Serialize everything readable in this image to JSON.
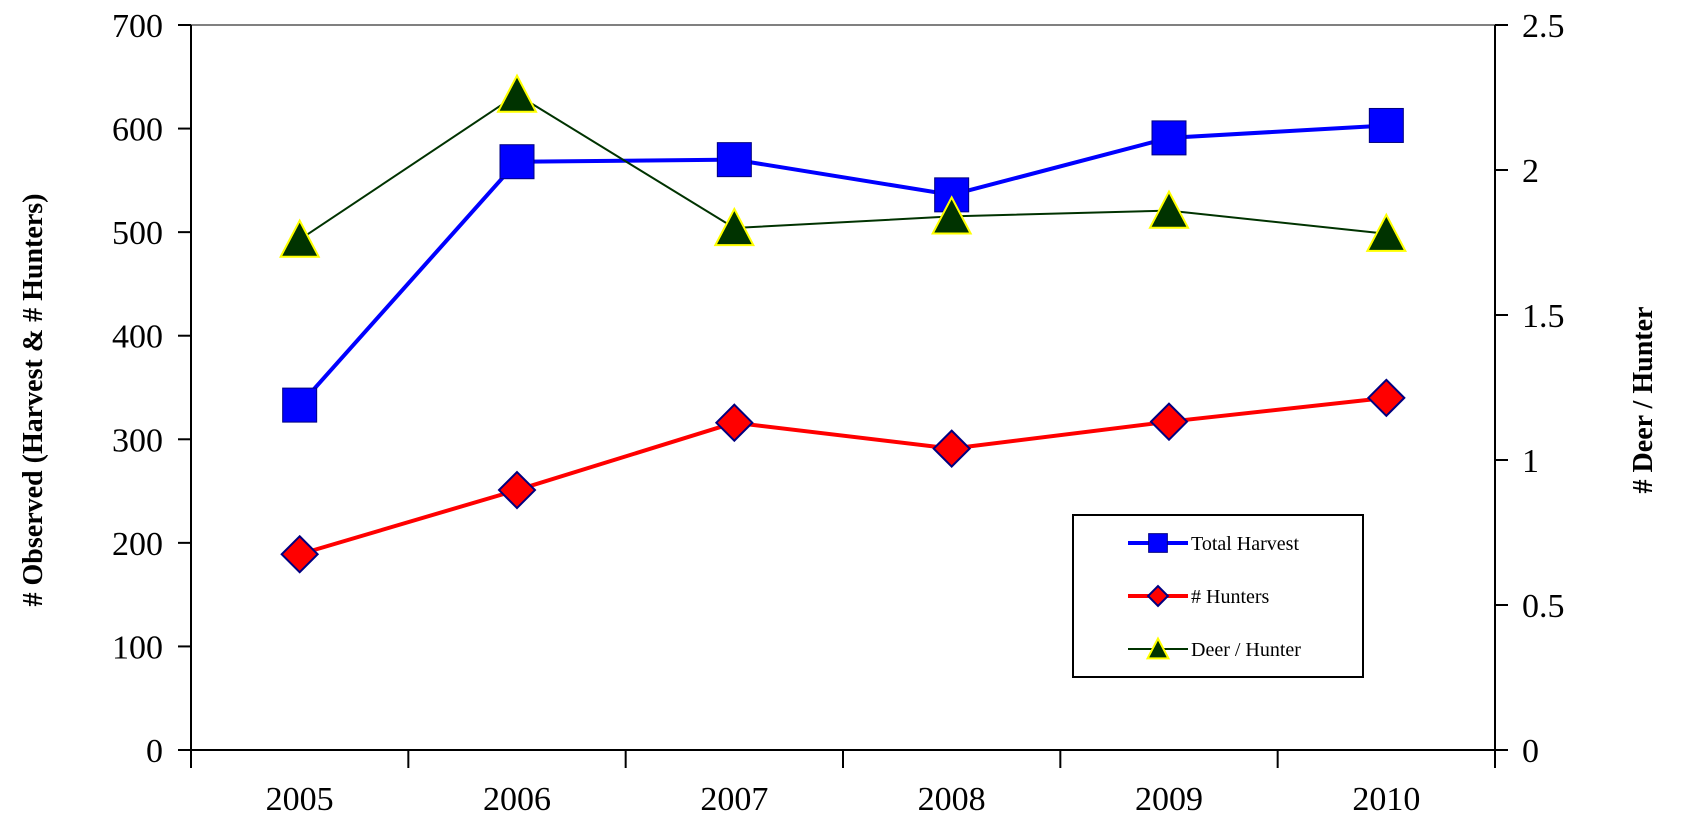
{
  "chart_data": {
    "type": "line",
    "categories": [
      "2005",
      "2006",
      "2007",
      "2008",
      "2009",
      "2010"
    ],
    "y_left": {
      "label": "# Observed (Harvest & # Hunters)",
      "range": [
        0,
        700
      ],
      "ticks": [
        "0",
        "100",
        "200",
        "300",
        "400",
        "500",
        "600",
        "700"
      ]
    },
    "y_right": {
      "label": "# Deer / Hunter",
      "range": [
        0,
        2.5
      ],
      "ticks": [
        "0",
        "0.5",
        "1",
        "1.5",
        "2",
        "2.5"
      ]
    },
    "series": [
      {
        "name": "Total Harvest",
        "axis": "left",
        "values": [
          333,
          568,
          570,
          536,
          591,
          603
        ],
        "color": "#0000ff",
        "marker": "square"
      },
      {
        "name": "# Hunters",
        "axis": "left",
        "values": [
          189,
          251,
          316,
          291,
          317,
          340
        ],
        "color": "#ff0000",
        "marker": "diamond"
      },
      {
        "name": "Deer / Hunter",
        "axis": "right",
        "values": [
          1.76,
          2.26,
          1.8,
          1.84,
          1.86,
          1.78
        ],
        "color": "#003300",
        "marker": "triangle"
      }
    ],
    "legend": {
      "position": "bottom-right"
    },
    "grid": false
  }
}
